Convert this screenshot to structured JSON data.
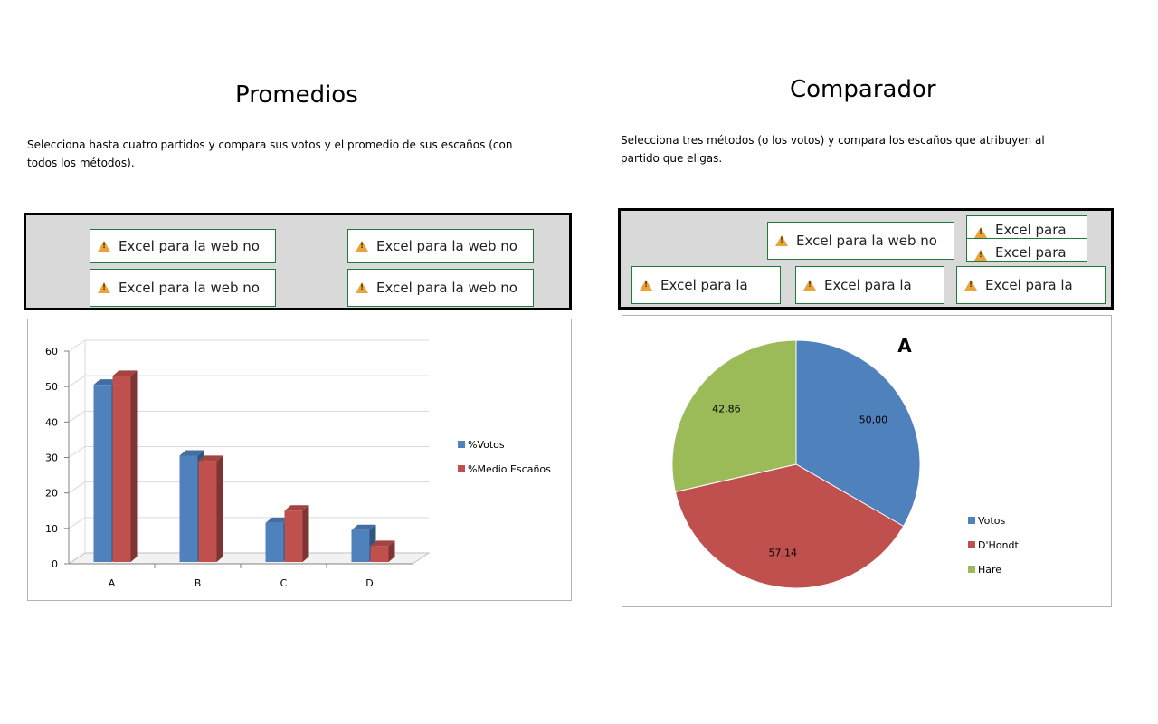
{
  "left": {
    "title": "Promedios",
    "description_line1": "Selecciona hasta cuatro partidos y compara sus votos y el promedio de sus escaños (con",
    "description_line2": "todos los métodos).",
    "controls": [
      {
        "label": "Excel para la web no"
      },
      {
        "label": "Excel para la web no"
      },
      {
        "label": "Excel para la web no"
      },
      {
        "label": "Excel para la web no"
      }
    ]
  },
  "right": {
    "title": "Comparador",
    "description_line1": "Selecciona tres métodos (o los votos) y compara los escaños que atribuyen al",
    "description_line2": "partido que eligas.",
    "controls": [
      {
        "label": "Excel para la web no"
      },
      {
        "label": "Excel para"
      },
      {
        "label": "Excel para"
      },
      {
        "label": "Excel para la"
      },
      {
        "label": "Excel para la"
      },
      {
        "label": "Excel para la"
      }
    ]
  },
  "colors": {
    "blue": "#4f81bd",
    "red": "#c0504d",
    "green": "#9bbb59",
    "control_border": "#1f7a3a",
    "panel_bg": "#d9d9d9"
  },
  "chart_data": [
    {
      "type": "bar",
      "categories": [
        "A",
        "B",
        "C",
        "D"
      ],
      "series": [
        {
          "name": "%Votos",
          "values": [
            50,
            30,
            11,
            9
          ]
        },
        {
          "name": "%Medio Escaños",
          "values": [
            52.5,
            28.5,
            14.5,
            4.5
          ]
        }
      ],
      "yticks": [
        "0",
        "10",
        "20",
        "30",
        "40",
        "50",
        "60"
      ],
      "ylim": [
        0,
        60
      ],
      "legend": "right",
      "grid": true
    },
    {
      "type": "pie",
      "title": "A",
      "slices": [
        {
          "name": "Votos",
          "value": 50.0,
          "label": "50,00"
        },
        {
          "name": "D'Hondt",
          "value": 57.14,
          "label": "57,14"
        },
        {
          "name": "Hare",
          "value": 42.86,
          "label": "42,86"
        }
      ],
      "legend": "right"
    }
  ]
}
